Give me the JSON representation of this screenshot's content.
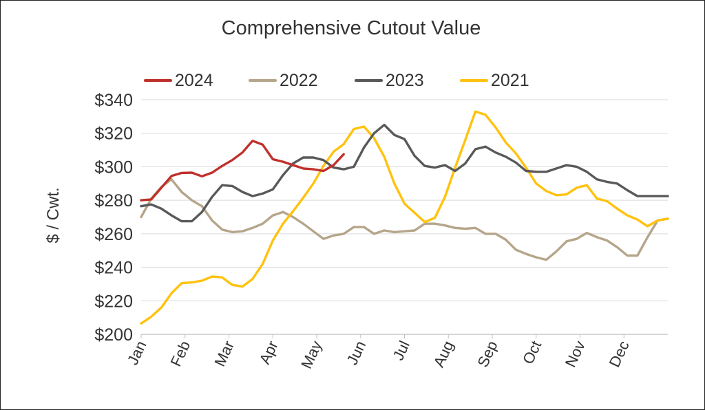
{
  "chart_data": {
    "type": "line",
    "title": "Comprehensive Cutout Value",
    "xlabel": "",
    "ylabel": "$ / Cwt.",
    "ylim": [
      200,
      340
    ],
    "yticks": [
      200,
      220,
      240,
      260,
      280,
      300,
      320,
      340
    ],
    "ytick_labels": [
      "$200",
      "$220",
      "$240",
      "$260",
      "$280",
      "$300",
      "$320",
      "$340"
    ],
    "x_unit": "week of year (0-52)",
    "xlim": [
      0,
      52
    ],
    "month_labels": [
      "Jan",
      "Feb",
      "Mar",
      "Apr",
      "May",
      "Jun",
      "Jul",
      "Aug",
      "Sep",
      "Oct",
      "Nov",
      "Dec"
    ],
    "month_positions": [
      0,
      4.33,
      8.67,
      13,
      17.33,
      21.67,
      26,
      30.33,
      34.67,
      39,
      43.33,
      47.67
    ],
    "grid": "horizontal",
    "legend_position": "top",
    "legend_order": [
      "2024",
      "2022",
      "2023",
      "2021"
    ],
    "series": [
      {
        "name": "2024",
        "color": "#C0302B",
        "x": [
          0,
          1,
          2,
          3,
          4,
          5,
          6,
          7,
          8,
          9,
          10,
          11,
          12,
          13,
          14,
          15,
          16,
          17,
          18,
          19,
          20
        ],
        "values": [
          280,
          280.5,
          287.5,
          294.5,
          296.3,
          296.5,
          294.3,
          296.5,
          300.5,
          304,
          308.5,
          315.5,
          313.2,
          304.5,
          303,
          301,
          299,
          298.5,
          297.5,
          301,
          307.5
        ]
      },
      {
        "name": "2022",
        "color": "#B5A58A",
        "x": [
          0,
          1,
          2,
          3,
          4,
          5,
          6,
          7,
          8,
          9,
          10,
          11,
          12,
          13,
          14,
          15,
          16,
          17,
          18,
          19,
          20,
          21,
          22,
          23,
          24,
          25,
          26,
          27,
          28,
          29,
          30,
          31,
          32,
          33,
          34,
          35,
          36,
          37,
          38,
          39,
          40,
          41,
          42,
          43,
          44,
          45,
          46,
          47,
          48,
          49,
          50,
          51,
          52
        ],
        "values": [
          270,
          281,
          288,
          292.5,
          285,
          280,
          276.5,
          268,
          262.5,
          261,
          261.5,
          263.5,
          266,
          271,
          273,
          270,
          266,
          261.5,
          257,
          259,
          260,
          264,
          264,
          260,
          262,
          261,
          261.5,
          262,
          266,
          266,
          265,
          263.5,
          263,
          263.5,
          260,
          260,
          256.5,
          250.5,
          248,
          246,
          244.5,
          249.5,
          255.5,
          257,
          260.5,
          258,
          256,
          252,
          247,
          247,
          258,
          268,
          269
        ]
      },
      {
        "name": "2023",
        "color": "#595959",
        "x": [
          0,
          1,
          2,
          3,
          4,
          5,
          6,
          7,
          8,
          9,
          10,
          11,
          12,
          13,
          14,
          15,
          16,
          17,
          18,
          19,
          20,
          21,
          22,
          23,
          24,
          25,
          26,
          27,
          28,
          29,
          30,
          31,
          32,
          33,
          34,
          35,
          36,
          37,
          38,
          39,
          40,
          41,
          42,
          43,
          44,
          45,
          46,
          47,
          48,
          49,
          50,
          51,
          52
        ],
        "values": [
          276.5,
          277.5,
          275,
          271,
          267.5,
          267.5,
          273,
          282,
          289,
          288.5,
          285,
          282.5,
          284,
          286.5,
          295,
          302,
          305.5,
          305.5,
          304,
          299.5,
          298.5,
          300,
          311.5,
          320,
          325,
          319,
          316.5,
          306.5,
          300.5,
          299.5,
          301,
          297.5,
          302,
          310.5,
          312,
          308.5,
          306,
          302.5,
          297.5,
          297,
          297,
          299,
          301,
          300,
          297,
          292.5,
          291,
          290,
          286,
          282.5,
          282.5,
          282.5,
          282.5
        ]
      },
      {
        "name": "2021",
        "color": "#FFC20E",
        "x": [
          0,
          1,
          2,
          3,
          4,
          5,
          6,
          7,
          8,
          9,
          10,
          11,
          12,
          13,
          14,
          15,
          16,
          17,
          18,
          19,
          20,
          21,
          22,
          23,
          24,
          25,
          26,
          27,
          28,
          29,
          30,
          31,
          32,
          33,
          34,
          35,
          36,
          37,
          38,
          39,
          40,
          41,
          42,
          43,
          44,
          45,
          46,
          47,
          48,
          49,
          50,
          51,
          52
        ],
        "values": [
          206.5,
          210.5,
          216,
          224.5,
          230.5,
          231,
          232,
          234.5,
          234,
          229.5,
          228.5,
          233,
          242,
          256,
          266,
          273.5,
          281.5,
          290,
          300.5,
          309,
          313.5,
          322.5,
          324,
          317,
          306,
          290,
          278,
          272.5,
          267,
          269.5,
          282,
          299.5,
          316,
          333,
          331,
          323.5,
          314.5,
          308,
          299.5,
          290,
          285.5,
          283,
          283.5,
          287.5,
          289,
          281,
          279.5,
          275,
          271,
          268.5,
          264.5,
          268,
          269
        ]
      }
    ]
  }
}
